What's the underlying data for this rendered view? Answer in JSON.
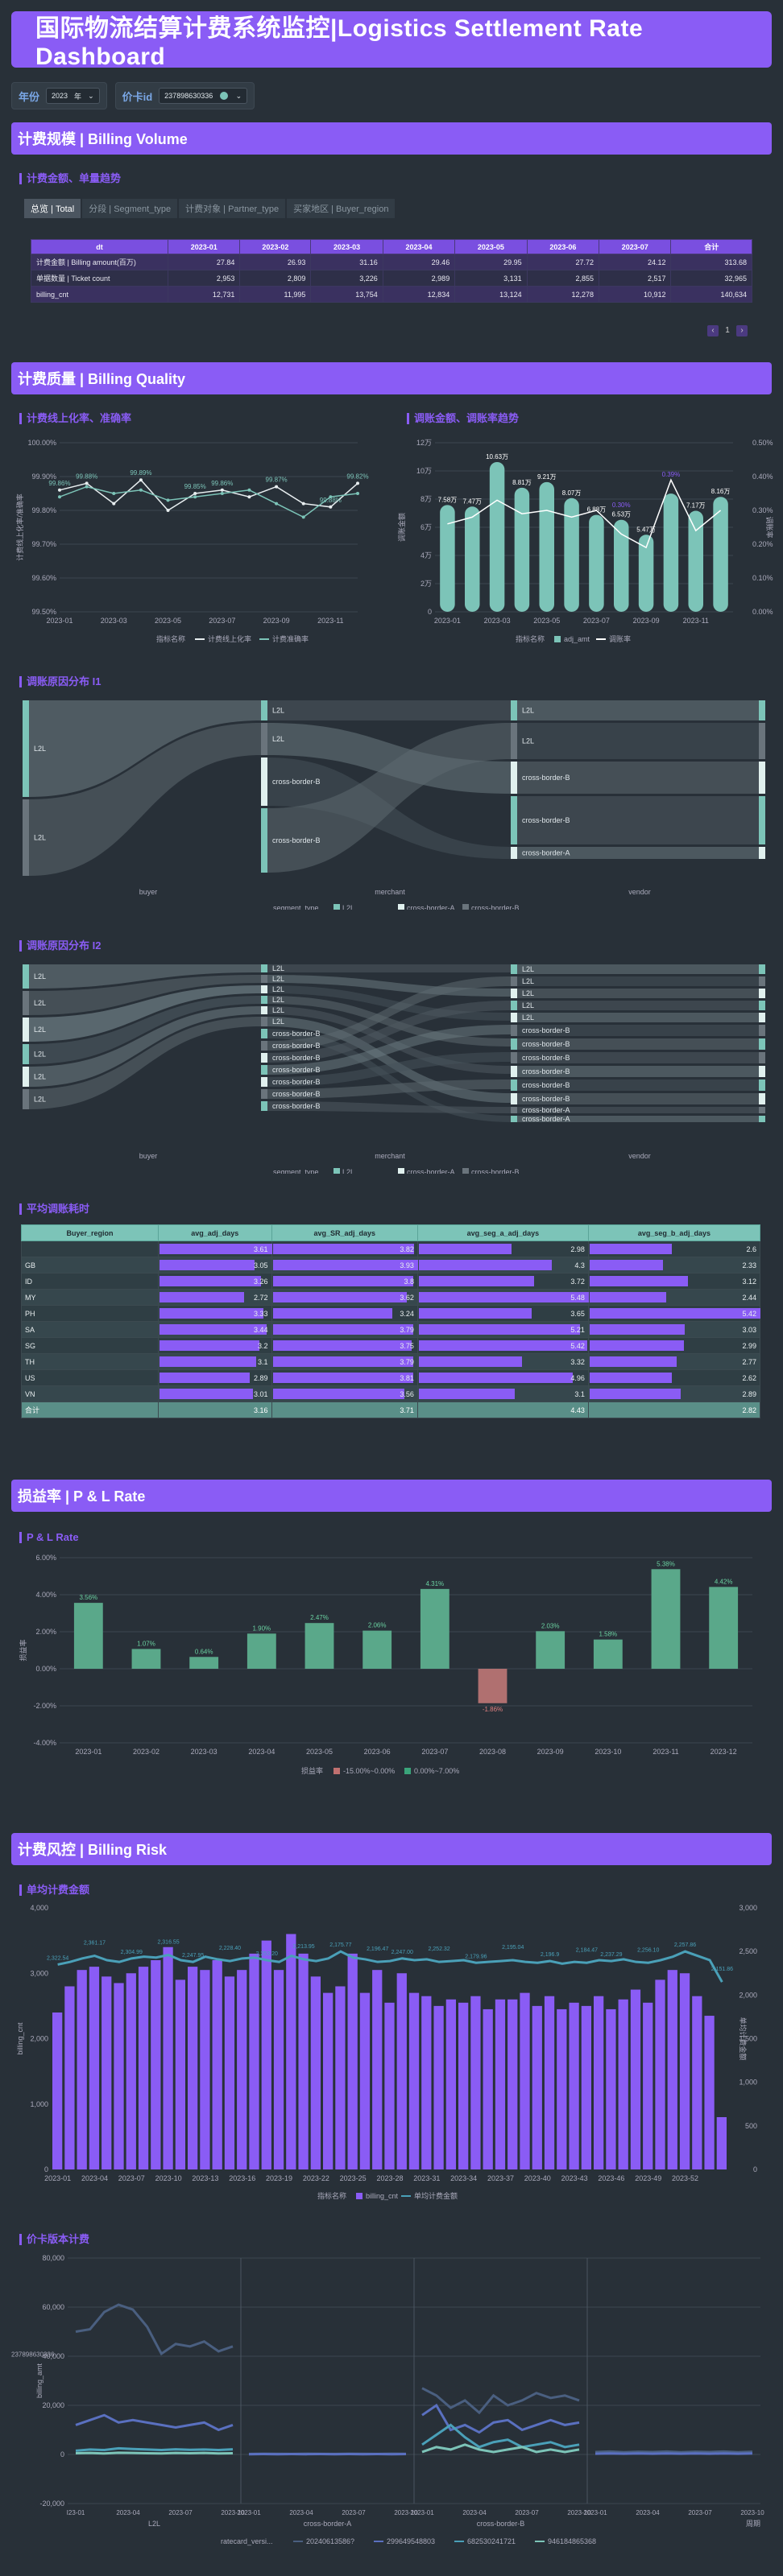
{
  "title": "国际物流结算计费系统监控|Logistics Settlement Rate Dashboard",
  "filters": {
    "year_label": "年份",
    "year_value": "2023",
    "year_unit": "年",
    "card_label": "价卡id",
    "card_value": "237898630336"
  },
  "sections": {
    "volume": "计费规模 | Billing Volume",
    "quality": "计费质量 | Billing Quality",
    "pl": "损益率 | P & L Rate",
    "risk": "计费风控 | Billing Risk"
  },
  "subs": {
    "volume": "计费金额、单量趋势",
    "quality_l": "计费线上化率、准确率",
    "quality_r": "调账金额、调账率趋势",
    "sankey1": "调账原因分布 I1",
    "sankey2": "调账原因分布 I2",
    "delay": "平均调账耗时",
    "pl": "P & L Rate",
    "risk_avg": "单均计费金额",
    "risk_card": "价卡版本计费"
  },
  "colors": {
    "accent": "#8a5cf5",
    "teal": "#7cc4b8",
    "red": "#c07070",
    "green": "#3aa47a"
  },
  "tabs": [
    "总览 | Total",
    "分段 | Segment_type",
    "计费对象 | Partner_type",
    "买家地区 | Buyer_region"
  ],
  "volume_table": {
    "headers": [
      "dt",
      "2023-01",
      "2023-02",
      "2023-03",
      "2023-04",
      "2023-05",
      "2023-06",
      "2023-07",
      "合计"
    ],
    "rows": [
      [
        "计费金额 | Billing amount(百万)",
        "27.84",
        "26.93",
        "31.16",
        "29.46",
        "29.95",
        "27.72",
        "24.12",
        "313.68"
      ],
      [
        "单据数量 | Ticket count",
        "2,953",
        "2,809",
        "3,226",
        "2,989",
        "3,131",
        "2,855",
        "2,517",
        "32,965"
      ],
      [
        "billing_cnt",
        "12,731",
        "11,995",
        "13,754",
        "12,834",
        "13,124",
        "12,278",
        "10,912",
        "140,634"
      ]
    ],
    "page": "1"
  },
  "quality_left": {
    "type": "line",
    "x": [
      "2023-01",
      "2023-02",
      "2023-03",
      "2023-04",
      "2023-05",
      "2023-06",
      "2023-07",
      "2023-08",
      "2023-09",
      "2023-10",
      "2023-11",
      "2023-12"
    ],
    "xticks": [
      "2023-01",
      "2023-03",
      "2023-05",
      "2023-07",
      "2023-09",
      "2023-11"
    ],
    "yticks": [
      "100.00%",
      "99.90%",
      "99.80%",
      "99.70%",
      "99.60%",
      "99.50%"
    ],
    "ylim": [
      99.5,
      100.0
    ],
    "ylabel": "计费线上化率/准确率",
    "legend_title": "指标名称",
    "series": [
      {
        "name": "计费线上化率",
        "values": [
          99.86,
          99.88,
          99.82,
          99.89,
          99.8,
          99.85,
          99.86,
          99.84,
          99.87,
          99.82,
          99.81,
          99.88
        ]
      },
      {
        "name": "计费准确率",
        "values": [
          99.84,
          99.87,
          99.85,
          99.86,
          99.83,
          99.84,
          99.85,
          99.86,
          99.82,
          99.78,
          99.84,
          99.85
        ]
      }
    ],
    "labels": [
      "99.86%",
      "99.88%",
      "99.89%",
      "99.85%",
      "99.86%",
      "99.87%",
      "99.88%",
      "99.82%"
    ]
  },
  "quality_right": {
    "type": "bar",
    "x": [
      "2023-01",
      "2023-02",
      "2023-03",
      "2023-04",
      "2023-05",
      "2023-06",
      "2023-07",
      "2023-08",
      "2023-09",
      "2023-10",
      "2023-11",
      "2023-12"
    ],
    "xticks": [
      "2023-01",
      "2023-03",
      "2023-05",
      "2023-07",
      "2023-09",
      "2023-11"
    ],
    "adj_amt": [
      7.58,
      7.47,
      10.63,
      8.81,
      9.21,
      8.07,
      6.88,
      6.53,
      5.47,
      8.39,
      7.17,
      8.16
    ],
    "amt_labels": [
      "7.58万",
      "7.47万",
      "10.63万",
      "8.81万",
      "9.21万",
      "8.07万",
      "6.88万",
      "6.53万",
      "5.47万",
      "",
      "7.17万",
      "8.16万"
    ],
    "rate": [
      0.26,
      0.28,
      0.33,
      0.29,
      0.3,
      0.28,
      0.3,
      0.23,
      0.19,
      0.39,
      0.24,
      0.3
    ],
    "rate_labels": [
      "0.30%",
      "0.39%"
    ],
    "yticks_l": [
      "12万",
      "10万",
      "8万",
      "6万",
      "4万",
      "2万",
      "0"
    ],
    "yticks_r": [
      "0.50%",
      "0.40%",
      "0.30%",
      "0.20%",
      "0.10%",
      "0.00%"
    ],
    "ylim_l": [
      0,
      12
    ],
    "ylim_r": [
      0,
      0.5
    ],
    "ylabel_l": "调账金额",
    "ylabel_r": "调账率",
    "legend_title": "指标名称",
    "legend": [
      "adj_amt",
      "调账率"
    ]
  },
  "sankey1": {
    "nodes": {
      "buyer": "buyer",
      "merchant": "merchant",
      "vendor": "vendor"
    },
    "left_labels": [
      "L2L",
      "L2L"
    ],
    "mid_labels": [
      "L2L",
      "L2L",
      "cross-border-B",
      "cross-border-B"
    ],
    "right_labels": [
      "L2L",
      "L2L",
      "cross-border-B",
      "cross-border-B",
      "cross-border-A"
    ],
    "legend_title": "segment_type",
    "legend": [
      "L2L",
      "cross-border-A",
      "cross-border-B"
    ]
  },
  "sankey2": {
    "nodes": {
      "buyer": "buyer",
      "merchant": "merchant",
      "vendor": "vendor"
    },
    "left_labels": [
      "L2L",
      "L2L",
      "L2L",
      "L2L",
      "L2L",
      "L2L"
    ],
    "mid_labels": [
      "L2L",
      "L2L",
      "L2L",
      "L2L",
      "L2L",
      "L2L",
      "cross-border-B",
      "cross-border-B",
      "cross-border-B",
      "cross-border-B",
      "cross-border-B",
      "cross-border-B",
      "cross-border-B"
    ],
    "right_labels": [
      "L2L",
      "L2L",
      "L2L",
      "L2L",
      "L2L",
      "cross-border-B",
      "cross-border-B",
      "cross-border-B",
      "cross-border-B",
      "cross-border-B",
      "cross-border-B",
      "cross-border-A",
      "cross-border-A"
    ],
    "legend_title": "segment_type",
    "legend": [
      "L2L",
      "cross-border-A",
      "cross-border-B"
    ]
  },
  "delay_table": {
    "headers": [
      "Buyer_region",
      "avg_adj_days",
      "avg_SR_adj_days",
      "avg_seg_a_adj_days",
      "avg_seg_b_adj_days"
    ],
    "rows": [
      [
        "",
        "3.61",
        "3.82",
        "2.98",
        "2.6"
      ],
      [
        "GB",
        "3.05",
        "3.93",
        "4.3",
        "2.33"
      ],
      [
        "ID",
        "3.26",
        "3.8",
        "3.72",
        "3.12"
      ],
      [
        "MY",
        "2.72",
        "3.62",
        "5.48",
        "2.44"
      ],
      [
        "PH",
        "3.33",
        "3.24",
        "3.65",
        "5.42"
      ],
      [
        "SA",
        "3.44",
        "3.79",
        "5.21",
        "3.03"
      ],
      [
        "SG",
        "3.2",
        "3.75",
        "5.42",
        "2.99"
      ],
      [
        "TH",
        "3.1",
        "3.79",
        "3.32",
        "2.77"
      ],
      [
        "US",
        "2.89",
        "3.81",
        "4.96",
        "2.62"
      ],
      [
        "VN",
        "3.01",
        "3.56",
        "3.1",
        "2.89"
      ]
    ],
    "total": [
      "合计",
      "3.16",
      "3.71",
      "4.43",
      "2.82"
    ],
    "max": [
      3.61,
      3.93,
      5.48,
      5.42
    ]
  },
  "pl_chart": {
    "type": "bar",
    "x": [
      "2023-01",
      "2023-02",
      "2023-03",
      "2023-04",
      "2023-05",
      "2023-06",
      "2023-07",
      "2023-08",
      "2023-09",
      "2023-10",
      "2023-11",
      "2023-12"
    ],
    "values": [
      3.56,
      1.07,
      0.64,
      1.9,
      2.47,
      2.06,
      4.31,
      -1.86,
      2.03,
      1.58,
      5.38,
      4.42
    ],
    "labels": [
      "3.56%",
      "1.07%",
      "0.64%",
      "1.90%",
      "2.47%",
      "2.06%",
      "4.31%",
      "-1.86%",
      "2.03%",
      "1.58%",
      "5.38%",
      "4.42%"
    ],
    "yticks": [
      "6.00%",
      "4.00%",
      "2.00%",
      "0.00%",
      "-2.00%",
      "-4.00%"
    ],
    "ylim": [
      -4,
      6
    ],
    "ylabel": "损益率",
    "legend_title": "损益率",
    "legend": [
      "-15.00%~0.00%",
      "0.00%~7.00%"
    ]
  },
  "risk_avg": {
    "type": "bar",
    "values": [
      2400,
      2800,
      3050,
      3100,
      2950,
      2850,
      3000,
      3100,
      3200,
      3400,
      2900,
      3100,
      3050,
      3200,
      2950,
      3050,
      3300,
      3500,
      3050,
      3600,
      3300,
      2950,
      2700,
      2800,
      3300,
      2700,
      3050,
      2550,
      3000,
      2700,
      2650,
      2500,
      2600,
      2550,
      2650,
      2450,
      2600,
      2600,
      2700,
      2500,
      2650,
      2450,
      2550,
      2500,
      2650,
      2450,
      2600,
      2750,
      2550,
      2900,
      3050,
      3000,
      2650,
      2350,
      800
    ],
    "avg_line": [
      2350,
      2380,
      2420,
      2450,
      2400,
      2380,
      2420,
      2440,
      2430,
      2460,
      2400,
      2380,
      2440,
      2410,
      2390,
      2420,
      2430,
      2400,
      2380,
      2450,
      2410,
      2390,
      2420,
      2500,
      2430,
      2410,
      2380,
      2390,
      2420,
      2400,
      2410,
      2380,
      2390,
      2400,
      2370,
      2380,
      2390,
      2400,
      2380,
      2370,
      2390,
      2360,
      2380,
      2370,
      2400,
      2390,
      2410,
      2380,
      2370,
      2400,
      2440,
      2500,
      2450,
      2400,
      2150
    ],
    "xticks": [
      "2023-01",
      "2023-04",
      "2023-07",
      "2023-10",
      "2023-13",
      "2023-16",
      "2023-19",
      "2023-22",
      "2023-25",
      "2023-28",
      "2023-31",
      "2023-34",
      "2023-37",
      "2023-40",
      "2023-43",
      "2023-46",
      "2023-49",
      "2023-52"
    ],
    "yticks_l": [
      "4,000",
      "3,000",
      "2,000",
      "1,000",
      "0"
    ],
    "yticks_r": [
      "3,000",
      "2,500",
      "2,000",
      "1,500",
      "1,000",
      "500",
      "0"
    ],
    "ylim_l": [
      0,
      4000
    ],
    "ylim_r": [
      0,
      3000
    ],
    "ylabel_l": "billing_cnt",
    "ylabel_r": "单均计费金额",
    "legend_title": "指标名称",
    "legend": [
      "billing_cnt",
      "单均计费金额"
    ],
    "line_labels": [
      "2,322.54",
      "2,361.17",
      "2,304.99",
      "2,316.55",
      "2,247.95",
      "2,228.40",
      "2,253.20",
      "2,213.95",
      "2,175.77",
      "2,196.47",
      "2,247.00",
      "2,252.32",
      "2,179.96",
      "2,195.04",
      "2,196.9",
      "2,184.47",
      "2,237.29",
      "2,256.10",
      "2,257.86",
      "2,151.86"
    ]
  },
  "risk_card": {
    "type": "line",
    "panels": [
      "L2L",
      "cross-border-A",
      "cross-border-B",
      ""
    ],
    "panel_xticks": [
      [
        "I23-01",
        "2023-04",
        "2023-07",
        "2023-10"
      ],
      [
        "2023-01",
        "2023-04",
        "2023-07",
        "2023-10"
      ],
      [
        "2023-01",
        "2023-04",
        "2023-07",
        "2023-10"
      ],
      [
        "2023-01",
        "2023-04",
        "2023-07",
        "2023-10"
      ]
    ],
    "yticks": [
      "80,000",
      "60,000",
      "40,000",
      "20,000",
      "0",
      "-20,000"
    ],
    "ylim": [
      -20000,
      80000
    ],
    "ylabel": "billing_amt",
    "row_label": "237898630336",
    "x_title": "周期",
    "legend_title": "ratecard_versi...",
    "legend": [
      "20240613586?",
      "299649548803",
      "682530241721",
      "946184865368"
    ],
    "series": [
      {
        "name": "20240613586?",
        "panel": 0,
        "values": [
          50000,
          51000,
          58000,
          61000,
          59000,
          52000,
          41000,
          45000,
          44000,
          46000,
          42000,
          44000
        ]
      },
      {
        "name": "299649548803",
        "panel": 0,
        "values": [
          12000,
          14000,
          16000,
          13000,
          14000,
          13000,
          12000,
          11000,
          12000,
          13000,
          10000,
          12000
        ]
      },
      {
        "name": "682530241721",
        "panel": 0,
        "values": [
          1500,
          2000,
          1800,
          2500,
          2200,
          2000,
          1800,
          2100,
          1900,
          2000,
          1800,
          2100
        ]
      },
      {
        "name": "946184865368",
        "panel": 0,
        "values": [
          500,
          600,
          400,
          700,
          600,
          500,
          400,
          600,
          500,
          600,
          400,
          500
        ]
      },
      {
        "name": "20240613586?",
        "panel": 1,
        "values": [
          200,
          300,
          250,
          200,
          300,
          250,
          200,
          300,
          250,
          200,
          300,
          250
        ]
      },
      {
        "name": "299649548803",
        "panel": 1,
        "values": [
          100,
          150,
          100,
          150,
          100,
          150,
          100,
          150,
          100,
          150,
          100,
          150
        ]
      },
      {
        "name": "20240613586?",
        "panel": 2,
        "values": [
          27000,
          24000,
          19000,
          22000,
          17000,
          24000,
          20000,
          22000,
          25000,
          23000,
          24000,
          22000
        ]
      },
      {
        "name": "299649548803",
        "panel": 2,
        "values": [
          16000,
          20000,
          10000,
          12000,
          9000,
          13000,
          14000,
          10000,
          12000,
          14000,
          12000,
          13000
        ]
      },
      {
        "name": "682530241721",
        "panel": 2,
        "values": [
          4000,
          8000,
          12000,
          7000,
          3000,
          5000,
          6000,
          3000,
          4000,
          5000,
          3000,
          4000
        ]
      },
      {
        "name": "946184865368",
        "panel": 2,
        "values": [
          1000,
          3000,
          2000,
          4000,
          2000,
          1000,
          2000,
          3000,
          1000,
          2000,
          1000,
          2000
        ]
      },
      {
        "name": "20240613586?",
        "panel": 3,
        "values": [
          1000,
          1200,
          900,
          1100,
          1000,
          1200,
          900,
          1100,
          1000,
          1200,
          900,
          1100
        ]
      },
      {
        "name": "299649548803",
        "panel": 3,
        "values": [
          300,
          400,
          300,
          400,
          300,
          400,
          300,
          400,
          300,
          400,
          300,
          400
        ]
      }
    ]
  }
}
